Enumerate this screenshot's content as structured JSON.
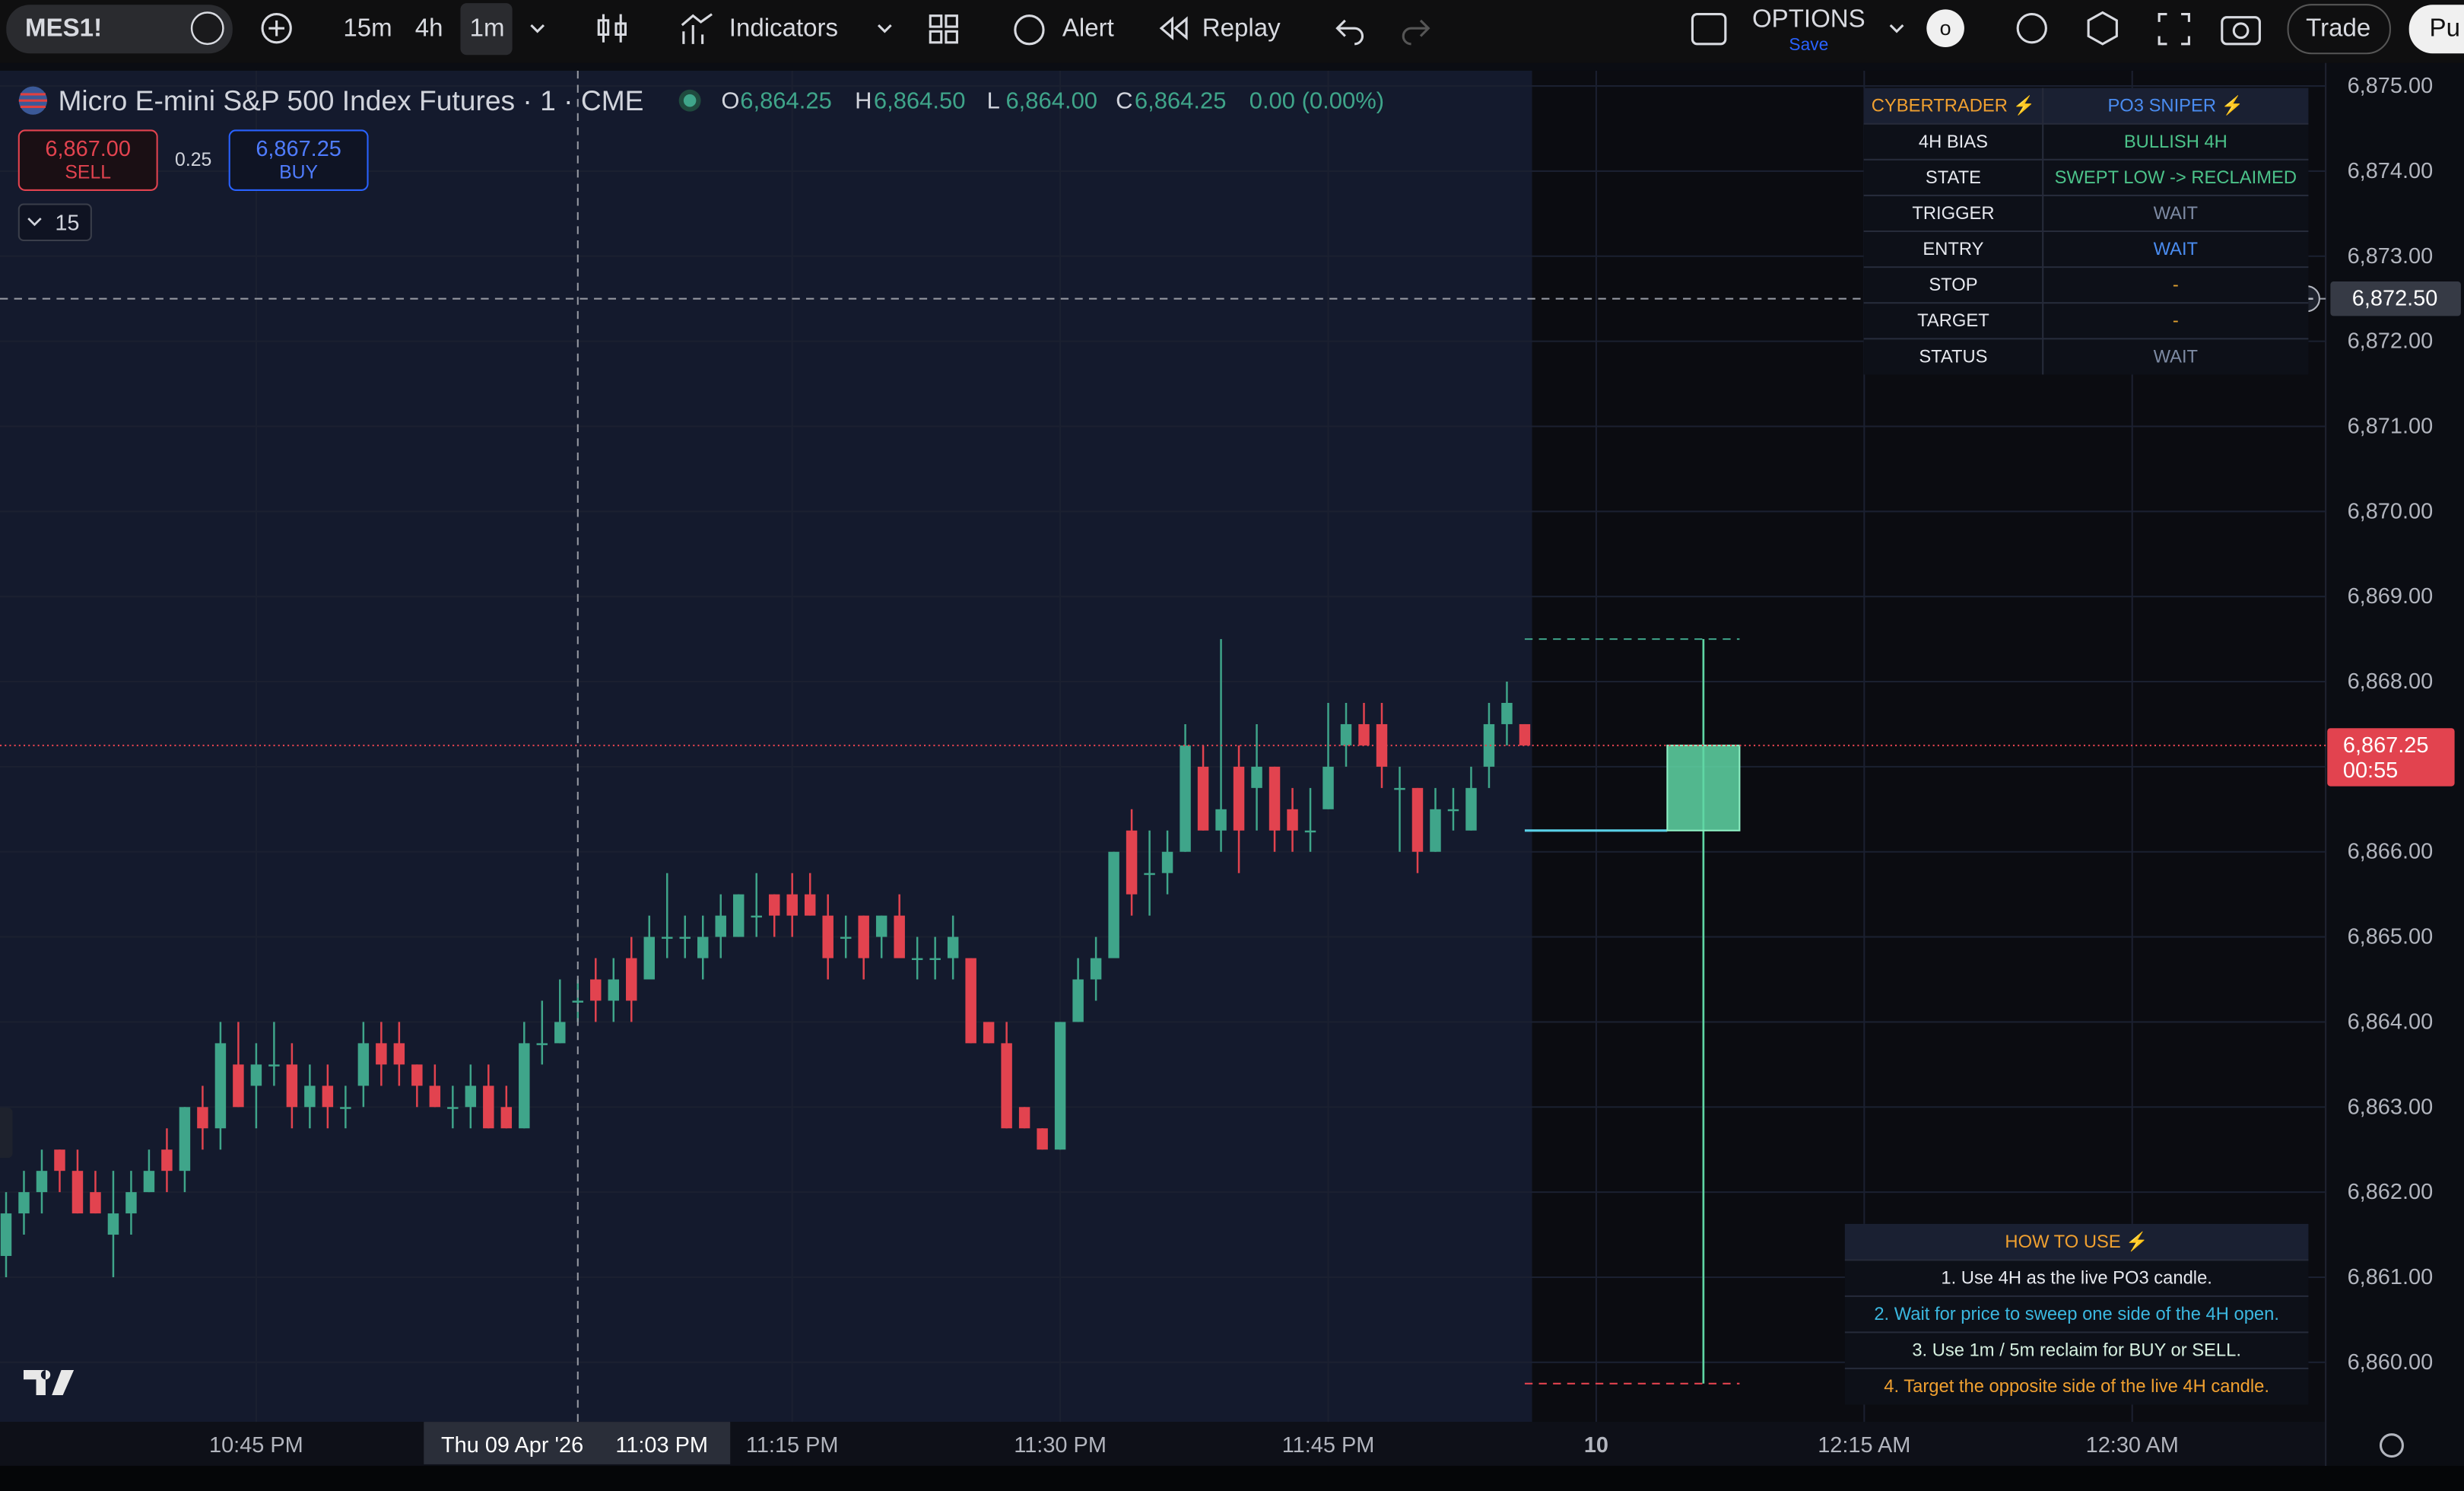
{
  "toolbar": {
    "symbol": "MES1!",
    "intervals": [
      "15m",
      "4h",
      "1m"
    ],
    "indicators": "Indicators",
    "alert": "Alert",
    "replay": "Replay",
    "layout": "OPTIONS",
    "save": "Save",
    "avatar": "o",
    "trade": "Trade",
    "publish": "Pu"
  },
  "header": {
    "title": "Micro E-mini S&P 500 Index Futures · 1 · CME",
    "ohlc": [
      {
        "key": "O",
        "value": "6,864.25"
      },
      {
        "key": "H",
        "value": "6,864.50"
      },
      {
        "key": "L",
        "value": "6,864.00"
      },
      {
        "key": "C",
        "value": "6,864.25"
      }
    ],
    "change": "0.00 (0.00%)",
    "sell_price": "6,867.00",
    "sell": "SELL",
    "spread": "0.25",
    "buy_price": "6,867.25",
    "buy": "BUY",
    "volume_toggle": "15"
  },
  "chart_data": {
    "type": "candlestick",
    "open": [
      6861.25,
      6861.75,
      6862.0,
      6862.5,
      6862.25,
      6862.0,
      6861.5,
      6861.75,
      6862.0,
      6862.5,
      6862.25,
      6863.0,
      6862.75,
      6863.5,
      6863.25,
      6863.5,
      6863.5,
      6863.0,
      6863.25,
      6863.0,
      6863.25,
      6863.75,
      6863.75,
      6863.5,
      6863.25,
      6863.0,
      6863.0,
      6863.25,
      6863.0,
      6862.75,
      6863.75,
      6863.75,
      6864.25,
      6864.5,
      6864.25,
      6864.75,
      6864.5,
      6865.0,
      6865.0,
      6864.75,
      6865.0,
      6865.0,
      6865.25,
      6865.5,
      6865.5,
      6865.5,
      6865.25,
      6865.0,
      6865.25,
      6865.0,
      6865.25,
      6864.75,
      6864.75,
      6864.75,
      6864.75,
      6864.0,
      6863.75,
      6863.0,
      6862.75,
      6862.5,
      6864.0,
      6864.5,
      6864.75,
      6866.25,
      6865.75,
      6865.75,
      6866.0,
      6867.0,
      6866.25,
      6867.0,
      6866.75,
      6867.0,
      6866.5,
      6866.25,
      6866.5,
      6867.25,
      6867.5,
      6867.5,
      6866.75,
      6866.75,
      6866.0,
      6866.5,
      6866.25,
      6867.0,
      6867.5,
      6867.5
    ],
    "high": [
      6862.0,
      6862.25,
      6862.5,
      6862.5,
      6862.5,
      6862.25,
      6862.25,
      6862.25,
      6862.5,
      6862.75,
      6863.0,
      6863.25,
      6864.0,
      6864.0,
      6863.75,
      6864.0,
      6863.75,
      6863.5,
      6863.5,
      6863.25,
      6864.0,
      6864.0,
      6864.0,
      6863.5,
      6863.5,
      6863.25,
      6863.5,
      6863.5,
      6863.25,
      6864.0,
      6864.25,
      6864.5,
      6864.5,
      6864.75,
      6864.75,
      6865.0,
      6865.25,
      6865.75,
      6865.25,
      6865.25,
      6865.5,
      6865.5,
      6865.75,
      6865.5,
      6865.75,
      6865.75,
      6865.5,
      6865.25,
      6865.25,
      6865.25,
      6865.5,
      6865.0,
      6865.0,
      6865.25,
      6864.75,
      6864.0,
      6864.0,
      6863.0,
      6862.75,
      6864.0,
      6864.75,
      6865.0,
      6866.0,
      6866.5,
      6866.25,
      6866.25,
      6867.5,
      6867.25,
      6868.5,
      6867.25,
      6867.5,
      6867.0,
      6866.75,
      6866.75,
      6867.75,
      6867.75,
      6867.75,
      6867.75,
      6867.0,
      6866.75,
      6866.75,
      6866.75,
      6867.0,
      6867.75,
      6868.0,
      6867.5
    ],
    "low": [
      6861.0,
      6861.5,
      6861.75,
      6862.0,
      6861.75,
      6861.75,
      6861.0,
      6861.5,
      6862.0,
      6862.0,
      6862.0,
      6862.5,
      6862.5,
      6863.0,
      6862.75,
      6863.25,
      6862.75,
      6862.75,
      6862.75,
      6862.75,
      6863.0,
      6863.25,
      6863.25,
      6863.0,
      6863.0,
      6862.75,
      6862.75,
      6862.75,
      6862.75,
      6862.75,
      6863.5,
      6863.75,
      6864.0,
      6864.0,
      6864.0,
      6864.0,
      6864.5,
      6864.75,
      6864.75,
      6864.5,
      6864.75,
      6865.0,
      6865.0,
      6865.0,
      6865.0,
      6865.25,
      6864.5,
      6864.75,
      6864.5,
      6864.75,
      6864.75,
      6864.5,
      6864.5,
      6864.5,
      6863.75,
      6863.75,
      6862.75,
      6862.75,
      6862.5,
      6862.5,
      6864.0,
      6864.25,
      6864.75,
      6865.25,
      6865.25,
      6865.5,
      6866.0,
      6866.25,
      6866.0,
      6865.75,
      6866.25,
      6866.0,
      6866.0,
      6866.0,
      6866.5,
      6867.0,
      6867.25,
      6866.75,
      6866.0,
      6865.75,
      6866.0,
      6866.25,
      6866.25,
      6866.75,
      6867.25,
      6867.25
    ],
    "close": [
      6861.75,
      6862.0,
      6862.25,
      6862.25,
      6861.75,
      6861.75,
      6861.75,
      6862.0,
      6862.25,
      6862.25,
      6863.0,
      6862.75,
      6863.75,
      6863.0,
      6863.5,
      6863.5,
      6863.0,
      6863.25,
      6863.0,
      6863.0,
      6863.75,
      6863.5,
      6863.5,
      6863.25,
      6863.0,
      6863.0,
      6863.25,
      6862.75,
      6862.75,
      6863.75,
      6863.75,
      6864.0,
      6864.25,
      6864.25,
      6864.5,
      6864.25,
      6865.0,
      6865.0,
      6865.0,
      6865.0,
      6865.25,
      6865.5,
      6865.25,
      6865.25,
      6865.25,
      6865.25,
      6864.75,
      6865.0,
      6864.75,
      6865.25,
      6864.75,
      6864.75,
      6864.75,
      6865.0,
      6863.75,
      6863.75,
      6862.75,
      6862.75,
      6862.5,
      6864.0,
      6864.5,
      6864.75,
      6866.0,
      6865.5,
      6865.75,
      6866.0,
      6867.25,
      6866.25,
      6866.5,
      6866.25,
      6867.0,
      6866.25,
      6866.25,
      6866.25,
      6867.0,
      6867.5,
      6867.25,
      6867.0,
      6866.75,
      6866.0,
      6866.5,
      6866.5,
      6866.75,
      6867.5,
      6867.75,
      6867.25
    ],
    "up_color": "#3fa58a",
    "down_color": "#e2434f",
    "xlim": [
      -0.34,
      129.83
    ],
    "xticks": [
      {
        "value": 14,
        "label": "10:45 PM"
      },
      {
        "value": 44,
        "label": "11:15 PM"
      },
      {
        "value": 59,
        "label": "11:30 PM"
      },
      {
        "value": 74,
        "label": "11:45 PM"
      },
      {
        "value": 89,
        "label": "10"
      },
      {
        "value": 104,
        "label": "12:15 AM"
      },
      {
        "value": 119,
        "label": "12:30 AM"
      }
    ],
    "ylim": [
      6859.3,
      6875.18
    ],
    "yticks": [
      {
        "value": 6875,
        "label": "6,875.00"
      },
      {
        "value": 6874,
        "label": "6,874.00"
      },
      {
        "value": 6873,
        "label": "6,873.00"
      },
      {
        "value": 6872,
        "label": "6,872.00"
      },
      {
        "value": 6871,
        "label": "6,871.00"
      },
      {
        "value": 6870,
        "label": "6,870.00"
      },
      {
        "value": 6869,
        "label": "6,869.00"
      },
      {
        "value": 6868,
        "label": "6,868.00"
      },
      {
        "value": 6867,
        "label": "6,867.00"
      },
      {
        "value": 6866,
        "label": "6,866.00"
      },
      {
        "value": 6865,
        "label": "6,865.00"
      },
      {
        "value": 6864,
        "label": "6,864.00"
      },
      {
        "value": 6863,
        "label": "6,863.00"
      },
      {
        "value": 6862,
        "label": "6,862.00"
      },
      {
        "value": 6861,
        "label": "6,861.00"
      },
      {
        "value": 6860,
        "label": "6,860.00"
      }
    ],
    "grid": true,
    "last_price": {
      "value": 6867.25,
      "label": "6,867.25"
    },
    "countdown": "00:55",
    "crosshair": {
      "x": {
        "value": 32,
        "date": "Thu 09 Apr '26",
        "time": "11:03 PM"
      },
      "y": {
        "value": 6872.5,
        "label": "6,872.50"
      }
    },
    "po3_candle": {
      "x": 95,
      "open": 6866.25,
      "high": 6868.5,
      "low": 6859.75,
      "close": 6867.25
    }
  },
  "table": {
    "header": [
      "CYBERTRADER ⚡",
      "PO3 SNIPER ⚡"
    ],
    "rows": [
      [
        "4H BIAS",
        "BULLISH 4H"
      ],
      [
        "STATE",
        "SWEPT LOW -> RECLAIMED"
      ],
      [
        "TRIGGER",
        "WAIT"
      ],
      [
        "ENTRY",
        "WAIT"
      ],
      [
        "STOP",
        "-"
      ],
      [
        "TARGET",
        "-"
      ],
      [
        "STATUS",
        "WAIT"
      ]
    ]
  },
  "how_to": {
    "title": "HOW TO USE ⚡",
    "steps": [
      "1. Use 4H as the live PO3 candle.",
      "2. Wait for price to sweep one side of the 4H open.",
      "3. Use 1m / 5m reclaim for BUY or SELL.",
      "4. Target the opposite side of the live 4H candle."
    ]
  }
}
